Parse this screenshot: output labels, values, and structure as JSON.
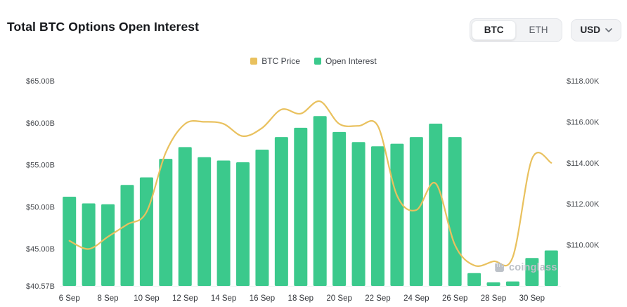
{
  "header": {
    "title": "Total BTC Options Open Interest",
    "asset_toggle": {
      "options": [
        "BTC",
        "ETH"
      ],
      "selected": "BTC"
    },
    "currency_button": {
      "label": "USD"
    }
  },
  "legend": [
    {
      "label": "BTC Price",
      "color": "#e9c15e"
    },
    {
      "label": "Open Interest",
      "color": "#3bc98c"
    }
  ],
  "watermark": {
    "text": "coinglass"
  },
  "chart_data": {
    "type": "bar",
    "title": "Total BTC Options Open Interest",
    "legend_position": "top-center",
    "grid": false,
    "x_dates": [
      "6 Sep",
      "7 Sep",
      "8 Sep",
      "9 Sep",
      "10 Sep",
      "11 Sep",
      "12 Sep",
      "13 Sep",
      "14 Sep",
      "15 Sep",
      "16 Sep",
      "17 Sep",
      "18 Sep",
      "19 Sep",
      "20 Sep",
      "21 Sep",
      "22 Sep",
      "23 Sep",
      "24 Sep",
      "25 Sep",
      "26 Sep",
      "27 Sep",
      "28 Sep",
      "29 Sep",
      "30 Sep",
      "1 Oct"
    ],
    "x_tick_labels": [
      "6 Sep",
      "8 Sep",
      "10 Sep",
      "12 Sep",
      "14 Sep",
      "16 Sep",
      "18 Sep",
      "20 Sep",
      "22 Sep",
      "24 Sep",
      "26 Sep",
      "28 Sep",
      "30 Sep"
    ],
    "x_tick_step": 2,
    "series": [
      {
        "name": "Open Interest",
        "type": "bar",
        "axis": "left",
        "color": "#3bc98c",
        "values": [
          51.2,
          50.4,
          50.3,
          52.6,
          53.5,
          55.7,
          57.1,
          55.9,
          55.5,
          55.3,
          56.8,
          58.3,
          59.4,
          60.8,
          58.9,
          57.7,
          57.2,
          57.5,
          58.3,
          59.9,
          58.3,
          42.1,
          41.0,
          41.1,
          43.9,
          44.8
        ]
      },
      {
        "name": "BTC Price",
        "type": "line",
        "axis": "right",
        "color": "#e9c15e",
        "values": [
          110.2,
          109.8,
          110.4,
          111.0,
          111.6,
          114.5,
          115.9,
          116.0,
          115.9,
          115.3,
          115.7,
          116.6,
          116.4,
          117.0,
          115.9,
          115.8,
          115.8,
          112.4,
          111.7,
          113.0,
          110.0,
          109.0,
          109.2,
          109.4,
          114.2,
          114.0
        ]
      }
    ],
    "left_axis": {
      "tick_labels": [
        "$65.00B",
        "$60.00B",
        "$55.00B",
        "$50.00B",
        "$45.00B",
        "$40.57B"
      ],
      "tick_values": [
        65,
        60,
        55,
        50,
        45,
        40.57
      ],
      "min": 40.57,
      "max": 65
    },
    "right_axis": {
      "tick_labels": [
        "$118.00K",
        "$116.00K",
        "$114.00K",
        "$112.00K",
        "$110.00K"
      ],
      "tick_values": [
        118,
        116,
        114,
        112,
        110
      ],
      "min": 108,
      "max": 118
    }
  }
}
